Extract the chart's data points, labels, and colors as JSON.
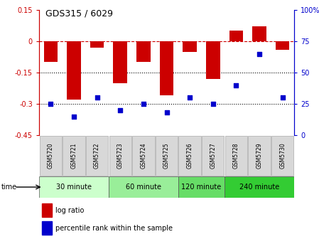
{
  "title": "GDS315 / 6029",
  "samples": [
    "GSM5720",
    "GSM5721",
    "GSM5722",
    "GSM5723",
    "GSM5724",
    "GSM5725",
    "GSM5726",
    "GSM5727",
    "GSM5728",
    "GSM5729",
    "GSM5730"
  ],
  "log_ratio": [
    -0.1,
    -0.28,
    -0.03,
    -0.2,
    -0.1,
    -0.26,
    -0.05,
    -0.18,
    0.05,
    0.07,
    -0.04
  ],
  "percentile": [
    25,
    15,
    30,
    20,
    25,
    18,
    30,
    25,
    40,
    65,
    30
  ],
  "ylim_left": [
    -0.45,
    0.15
  ],
  "ylim_right": [
    0,
    100
  ],
  "yticks_left": [
    0.15,
    0,
    -0.15,
    -0.3,
    -0.45
  ],
  "yticks_right": [
    100,
    75,
    50,
    25,
    0
  ],
  "hlines": [
    0.0,
    -0.15,
    -0.3
  ],
  "hline_styles": [
    "dashed",
    "dotted",
    "dotted"
  ],
  "hline_colors": [
    "#cc0000",
    "#000000",
    "#000000"
  ],
  "bar_color": "#cc0000",
  "scatter_color": "#0000cc",
  "groups": [
    {
      "label": "30 minute",
      "start": 0,
      "end": 3,
      "color": "#ccffcc"
    },
    {
      "label": "60 minute",
      "start": 3,
      "end": 6,
      "color": "#99ee99"
    },
    {
      "label": "120 minute",
      "start": 6,
      "end": 8,
      "color": "#66dd66"
    },
    {
      "label": "240 minute",
      "start": 8,
      "end": 11,
      "color": "#33cc33"
    }
  ],
  "xlabel": "time",
  "legend_labels": [
    "log ratio",
    "percentile rank within the sample"
  ],
  "legend_colors": [
    "#cc0000",
    "#0000cc"
  ],
  "bg_color": "#ffffff",
  "plot_bg_color": "#ffffff",
  "sample_box_color": "#d8d8d8",
  "sample_box_edge": "#aaaaaa"
}
